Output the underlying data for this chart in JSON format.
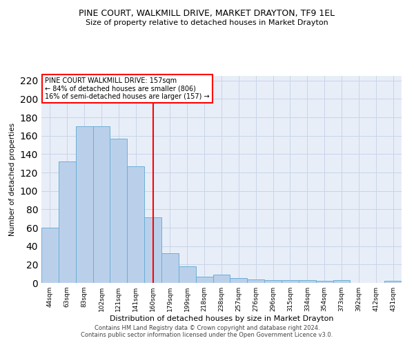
{
  "title": "PINE COURT, WALKMILL DRIVE, MARKET DRAYTON, TF9 1EL",
  "subtitle": "Size of property relative to detached houses in Market Drayton",
  "xlabel": "Distribution of detached houses by size in Market Drayton",
  "ylabel": "Number of detached properties",
  "categories": [
    "44sqm",
    "63sqm",
    "83sqm",
    "102sqm",
    "121sqm",
    "141sqm",
    "160sqm",
    "179sqm",
    "199sqm",
    "218sqm",
    "238sqm",
    "257sqm",
    "276sqm",
    "296sqm",
    "315sqm",
    "334sqm",
    "354sqm",
    "373sqm",
    "392sqm",
    "412sqm",
    "431sqm"
  ],
  "bar_heights": [
    60,
    132,
    170,
    170,
    157,
    127,
    71,
    32,
    18,
    7,
    9,
    5,
    4,
    3,
    3,
    3,
    2,
    3,
    0,
    0,
    2
  ],
  "bar_color": "#bad0ea",
  "bar_edge_color": "#6baed6",
  "vline_color": "red",
  "vline_index": 6,
  "annotation_text": "PINE COURT WALKMILL DRIVE: 157sqm\n← 84% of detached houses are smaller (806)\n16% of semi-detached houses are larger (157) →",
  "annotation_box_color": "white",
  "annotation_box_edge_color": "red",
  "ylim": [
    0,
    225
  ],
  "yticks": [
    0,
    20,
    40,
    60,
    80,
    100,
    120,
    140,
    160,
    180,
    200,
    220
  ],
  "footer1": "Contains HM Land Registry data © Crown copyright and database right 2024.",
  "footer2": "Contains public sector information licensed under the Open Government Licence v3.0.",
  "bg_color": "#e8eef8",
  "grid_color": "#c8d4e8"
}
